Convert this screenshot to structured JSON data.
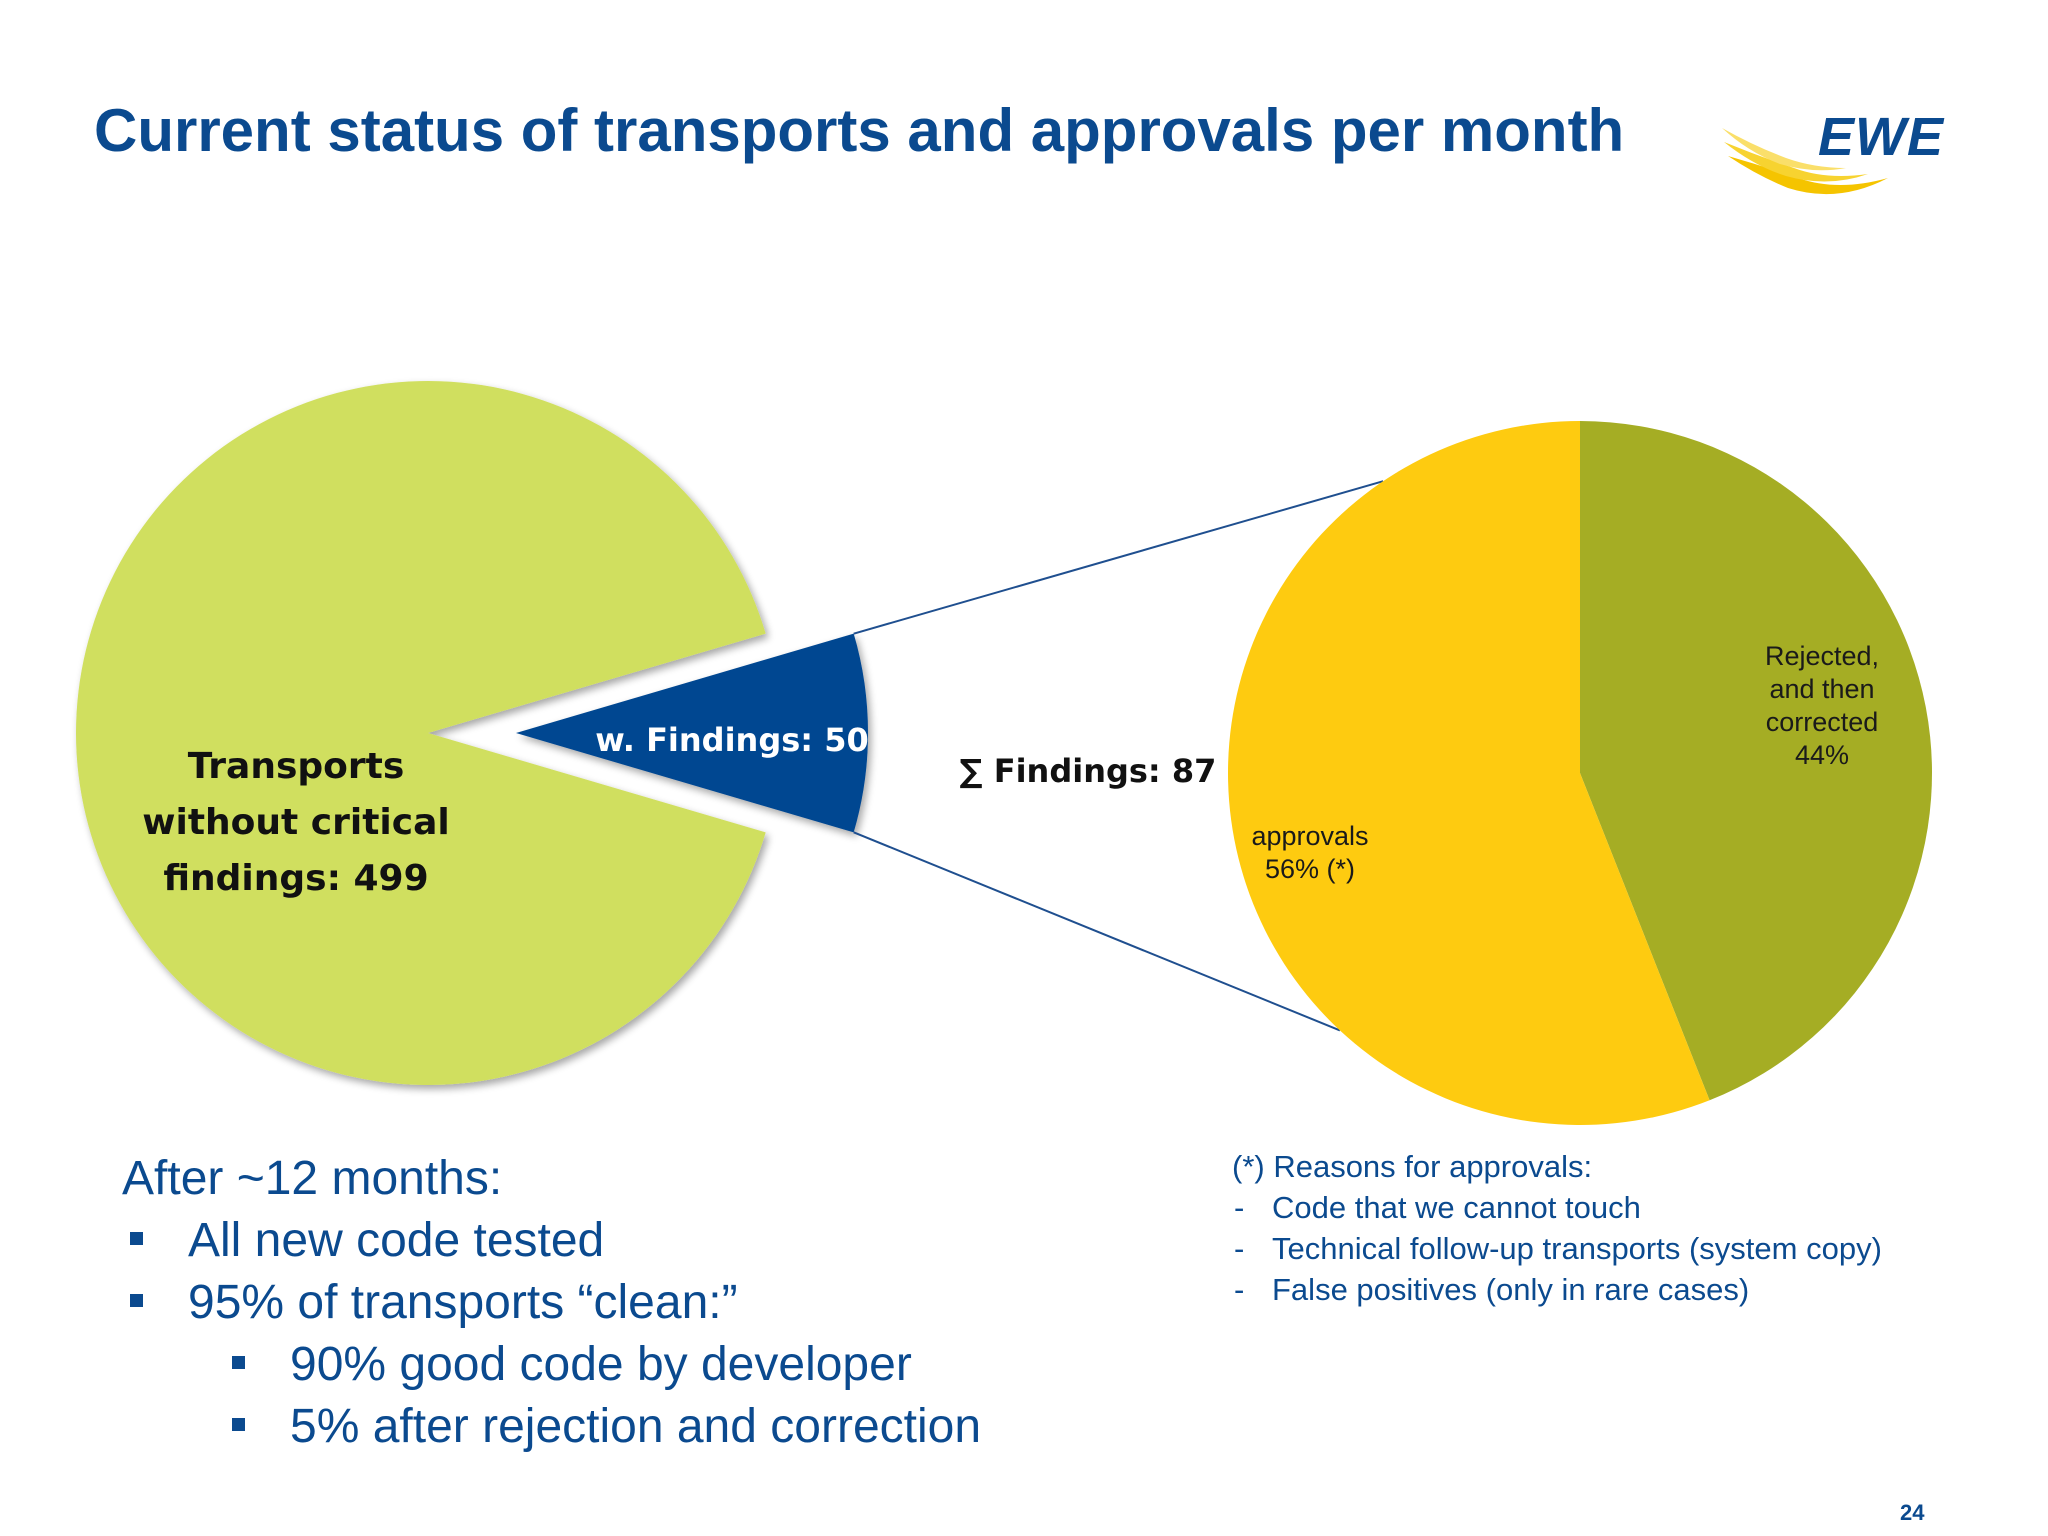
{
  "slide": {
    "title": "Current status of transports and approvals per month",
    "logo_text": "EWE",
    "page_number": "24"
  },
  "colors": {
    "title_blue": "#0b4a8f",
    "pie_green": "#d0df5e",
    "findings_blue": "#064791",
    "approvals_yellow": "#fecb10",
    "rejected_olive": "#a5ad24"
  },
  "chart_data": [
    {
      "type": "pie",
      "title": "",
      "slices": [
        {
          "label": "Transports without critical findings: 499",
          "label_lines": [
            "Transports",
            "without critical",
            "findings: 499"
          ],
          "value": 499,
          "color": "#d0df5e"
        },
        {
          "label": "w. Findings: 50",
          "value": 50,
          "color": "#064791",
          "exploded": true
        }
      ]
    },
    {
      "type": "pie",
      "title": "∑ Findings: 87",
      "slices": [
        {
          "label": "Rejected, and then corrected",
          "label_lines": [
            "Rejected,",
            "and then",
            "corrected",
            "44%"
          ],
          "value": 44,
          "unit": "%",
          "color": "#a5ad24"
        },
        {
          "label": "approvals",
          "label_lines": [
            "approvals",
            "56% (*)"
          ],
          "value": 56,
          "unit": "%",
          "color": "#fecb10"
        }
      ]
    }
  ],
  "summary": {
    "heading": "After ~12 months:",
    "bullets": [
      {
        "text": "All new code tested",
        "level": 1
      },
      {
        "text": "95% of transports “clean:”",
        "level": 1
      },
      {
        "text": "90% good code by developer",
        "level": 2
      },
      {
        "text": "5% after rejection and correction",
        "level": 2
      }
    ]
  },
  "notes": {
    "heading": "(*) Reasons for approvals:",
    "items": [
      "Code that we cannot touch",
      "Technical follow-up transports (system copy)",
      "False positives (only in rare cases)"
    ]
  }
}
